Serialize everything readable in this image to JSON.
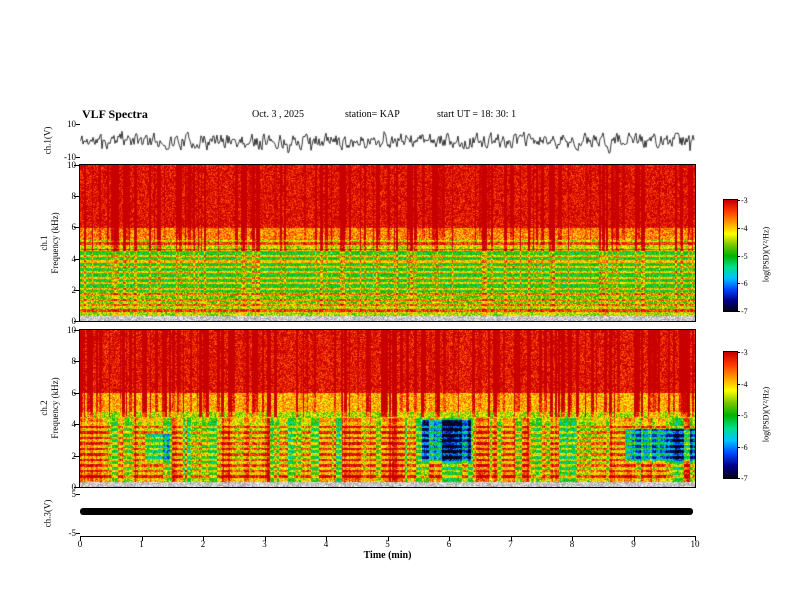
{
  "title": "VLF Spectra",
  "header": {
    "date": "Oct. 3  , 2025",
    "station": "station= KAP",
    "start_ut": "start UT =   18: 30: 1"
  },
  "axes": {
    "time_label": "Time (min)",
    "time_ticks": [
      "0",
      "1",
      "2",
      "3",
      "4",
      "5",
      "6",
      "7",
      "8",
      "9",
      "10"
    ],
    "time_range_min": [
      0,
      10
    ]
  },
  "panels": {
    "ch1_wave": {
      "ylabel": "ch.1(V)",
      "yticks": [
        "10",
        "-10"
      ],
      "ylim": [
        -10,
        10
      ]
    },
    "ch1_spec": {
      "ylabel_line1": "ch.1",
      "ylabel_line2": "Frequency (kHz)",
      "yticks": [
        "10",
        "8",
        "6",
        "4",
        "2",
        "0"
      ],
      "ylim_khz": [
        0,
        10
      ]
    },
    "ch2_spec": {
      "ylabel_line1": "ch.2",
      "ylabel_line2": "Frequency (kHz)",
      "yticks": [
        "10",
        "8",
        "6",
        "4",
        "2",
        "0"
      ],
      "ylim_khz": [
        0,
        10
      ]
    },
    "ch3_wave": {
      "ylabel": "ch.3(V)",
      "yticks": [
        "5",
        "-5"
      ],
      "ylim": [
        -5,
        5
      ]
    }
  },
  "colorbars": [
    {
      "label": "log(PSD)(V²/Hz)",
      "ticks": [
        "-3",
        "-4",
        "-5",
        "-6",
        "-7"
      ],
      "range": [
        -7,
        -3
      ]
    },
    {
      "label": "log(PSD)(V²/Hz)",
      "ticks": [
        "-3",
        "-4",
        "-5",
        "-6",
        "-7"
      ],
      "range": [
        -7,
        -3
      ]
    }
  ],
  "palette": {
    "background": "#ffffff",
    "trace_color": "#000000",
    "stops": [
      "#060612",
      "#00008c",
      "#0046ff",
      "#00c3ff",
      "#00e08c",
      "#00b400",
      "#78c800",
      "#ffff00",
      "#ff9b00",
      "#ff3c00",
      "#c80000"
    ]
  },
  "chart_data": [
    {
      "type": "line",
      "name": "ch1_waveform",
      "xlabel": "Time (min)",
      "xlim": [
        0,
        10
      ],
      "ylabel": "ch.1(V)",
      "ylim": [
        -10,
        10
      ],
      "description": "Continuous broadband noise waveform centred on 0 V with excursions of roughly ±3 to ±9 V for the full 10 minute record",
      "seed": 11
    },
    {
      "type": "heatmap",
      "name": "ch1_spectrogram",
      "xlabel": "Time (min)",
      "xlim": [
        0,
        10
      ],
      "ylabel": "Frequency (kHz)",
      "ylim": [
        0,
        10
      ],
      "value_label": "log(PSD)(V²/Hz)",
      "value_range": [
        -7,
        -3
      ],
      "bands": [
        {
          "f_khz": [
            6.0,
            10.0
          ],
          "level": -3.1
        },
        {
          "f_khz": [
            5.2,
            6.0
          ],
          "level": -3.7
        },
        {
          "f_khz": [
            4.6,
            5.2
          ],
          "level": -4.4
        },
        {
          "f_khz": [
            1.9,
            4.6
          ],
          "level": -5.0
        },
        {
          "f_khz": [
            1.0,
            1.9
          ],
          "level": -4.7
        },
        {
          "f_khz": [
            0.35,
            1.0
          ],
          "level": -4.5
        },
        {
          "f_khz": [
            0.0,
            0.35
          ],
          "level": -5.6
        }
      ],
      "tone_lines_khz": [
        0.7,
        1.05,
        1.4,
        1.75,
        2.1,
        2.45,
        2.8,
        3.15,
        3.5,
        3.85,
        4.2,
        4.6,
        5.0
      ],
      "tone_boost": 1.0,
      "streak_threshold": 0.55,
      "bar_mod_below_khz": 0,
      "blue_patches": [],
      "seed": 23
    },
    {
      "type": "heatmap",
      "name": "ch2_spectrogram",
      "xlabel": "Time (min)",
      "xlim": [
        0,
        10
      ],
      "ylabel": "Frequency (kHz)",
      "ylim": [
        0,
        10
      ],
      "value_label": "log(PSD)(V²/Hz)",
      "value_range": [
        -7,
        -3
      ],
      "bands": [
        {
          "f_khz": [
            6.0,
            10.0
          ],
          "level": -3.15
        },
        {
          "f_khz": [
            4.8,
            6.0
          ],
          "level": -3.9
        },
        {
          "f_khz": [
            4.2,
            4.8
          ],
          "level": -4.5
        },
        {
          "f_khz": [
            1.0,
            4.2
          ],
          "level": -4.8
        },
        {
          "f_khz": [
            0.35,
            1.0
          ],
          "level": -4.5
        },
        {
          "f_khz": [
            0.0,
            0.35
          ],
          "level": -5.6
        }
      ],
      "tone_lines_khz": [
        0.7,
        1.05,
        1.4,
        1.75,
        2.1,
        2.45,
        2.8,
        3.15,
        3.5,
        3.85
      ],
      "tone_boost": 0.9,
      "streak_threshold": 0.55,
      "bar_mod_below_khz": 4.4,
      "blue_patches": [
        {
          "t_min": [
            5.55,
            6.35
          ],
          "f_khz": [
            1.7,
            4.3
          ],
          "delta": -1.8
        },
        {
          "t_min": [
            8.85,
            10.0
          ],
          "f_khz": [
            1.7,
            3.7
          ],
          "delta": -1.8
        },
        {
          "t_min": [
            1.05,
            1.45
          ],
          "f_khz": [
            1.7,
            3.4
          ],
          "delta": -1.0
        }
      ],
      "seed": 37
    },
    {
      "type": "line",
      "name": "ch3_waveform",
      "xlabel": "Time (min)",
      "xlim": [
        0,
        10
      ],
      "ylabel": "ch.3(V)",
      "ylim": [
        -5,
        5
      ],
      "description": "Flat saturated trace at 0 V drawn as a thick solid black band across the full record",
      "value_v": 0
    }
  ]
}
